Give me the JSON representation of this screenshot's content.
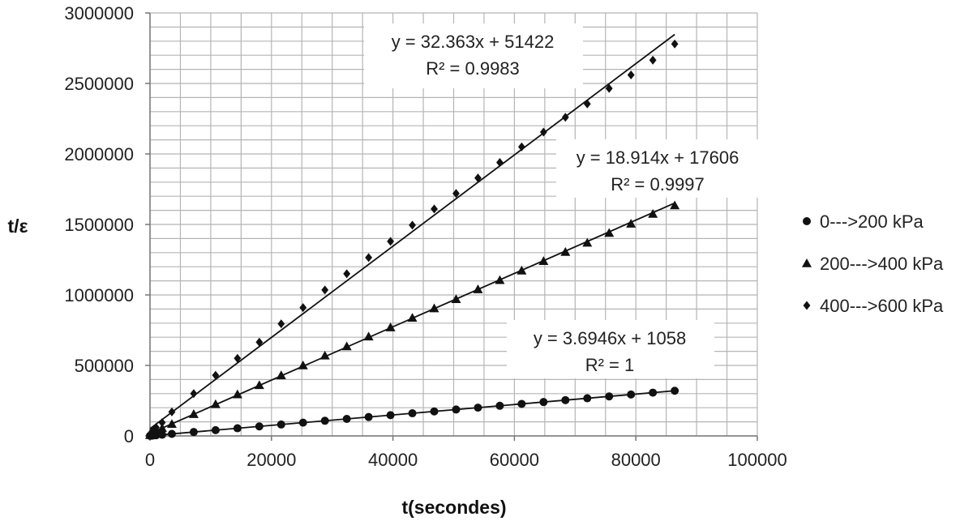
{
  "chart_data": {
    "type": "scatter",
    "xlabel": "t(secondes)",
    "ylabel": "t/ε",
    "xlim": [
      0,
      100000
    ],
    "ylim": [
      0,
      3000000
    ],
    "x_ticks": [
      "0",
      "20000",
      "40000",
      "60000",
      "80000",
      "100000"
    ],
    "y_ticks": [
      "0",
      "500000",
      "1000000",
      "1500000",
      "2000000",
      "2500000",
      "3000000"
    ],
    "grid": true,
    "legend_position": "right",
    "series": [
      {
        "name": "0--->200 kPa",
        "marker": "circle",
        "x": [
          0,
          250,
          500,
          1000,
          2000,
          3600,
          7200,
          10800,
          14400,
          18000,
          21600,
          25200,
          28800,
          32400,
          36000,
          39600,
          43200,
          46800,
          50400,
          54000,
          57600,
          61200,
          64800,
          68400,
          72000,
          75600,
          79200,
          82800,
          86400
        ],
        "y": [
          1058,
          1982,
          2905,
          4753,
          8447,
          14359,
          27659,
          40960,
          54260,
          67561,
          80861,
          94162,
          107462,
          120763,
          134064,
          147364,
          160665,
          173965,
          187266,
          200566,
          213867,
          227167,
          240468,
          253768,
          267069,
          280369,
          293670,
          306970,
          320271
        ],
        "trendline": {
          "slope": 3.6946,
          "intercept": 1058,
          "x_end": 86400
        },
        "equation": "y = 3.6946x + 1058",
        "r2": "R² = 1"
      },
      {
        "name": "200--->400 kPa",
        "marker": "triangle",
        "x": [
          0,
          250,
          500,
          1000,
          2000,
          3600,
          7200,
          10800,
          14400,
          18000,
          21600,
          25200,
          28800,
          32400,
          36000,
          39600,
          43200,
          46800,
          50400,
          54000,
          57600,
          61200,
          64800,
          68400,
          72000,
          75600,
          79200,
          82800,
          86400
        ],
        "y": [
          6000,
          12000,
          20000,
          36000,
          55000,
          85000,
          155000,
          225000,
          295000,
          360000,
          430000,
          500000,
          570000,
          635000,
          705000,
          770000,
          838000,
          905000,
          970000,
          1040000,
          1105000,
          1173000,
          1240000,
          1305000,
          1370000,
          1440000,
          1505000,
          1575000,
          1635000
        ],
        "trendline": {
          "slope": 18.914,
          "intercept": 17606,
          "x_end": 86400
        },
        "equation": "y = 18.914x + 17606",
        "r2": "R² = 0.9997"
      },
      {
        "name": "400--->600 kPa",
        "marker": "diamond",
        "x": [
          0,
          250,
          500,
          1000,
          2000,
          3600,
          7200,
          10800,
          14400,
          18000,
          21600,
          25200,
          28800,
          32400,
          36000,
          39600,
          43200,
          46800,
          50400,
          54000,
          57600,
          61200,
          64800,
          68400,
          72000,
          75600,
          79200,
          82800,
          86400
        ],
        "y": [
          10000,
          25000,
          40000,
          60000,
          95000,
          170000,
          300000,
          430000,
          550000,
          665000,
          795000,
          910000,
          1035000,
          1150000,
          1265000,
          1380000,
          1495000,
          1610000,
          1720000,
          1830000,
          1940000,
          2050000,
          2155000,
          2260000,
          2355000,
          2465000,
          2560000,
          2665000,
          2780000
        ],
        "trendline": {
          "slope": 32.363,
          "intercept": 51422,
          "x_end": 86400
        },
        "equation": "y = 32.363x + 51422",
        "r2": "R² = 0.9983"
      }
    ]
  }
}
